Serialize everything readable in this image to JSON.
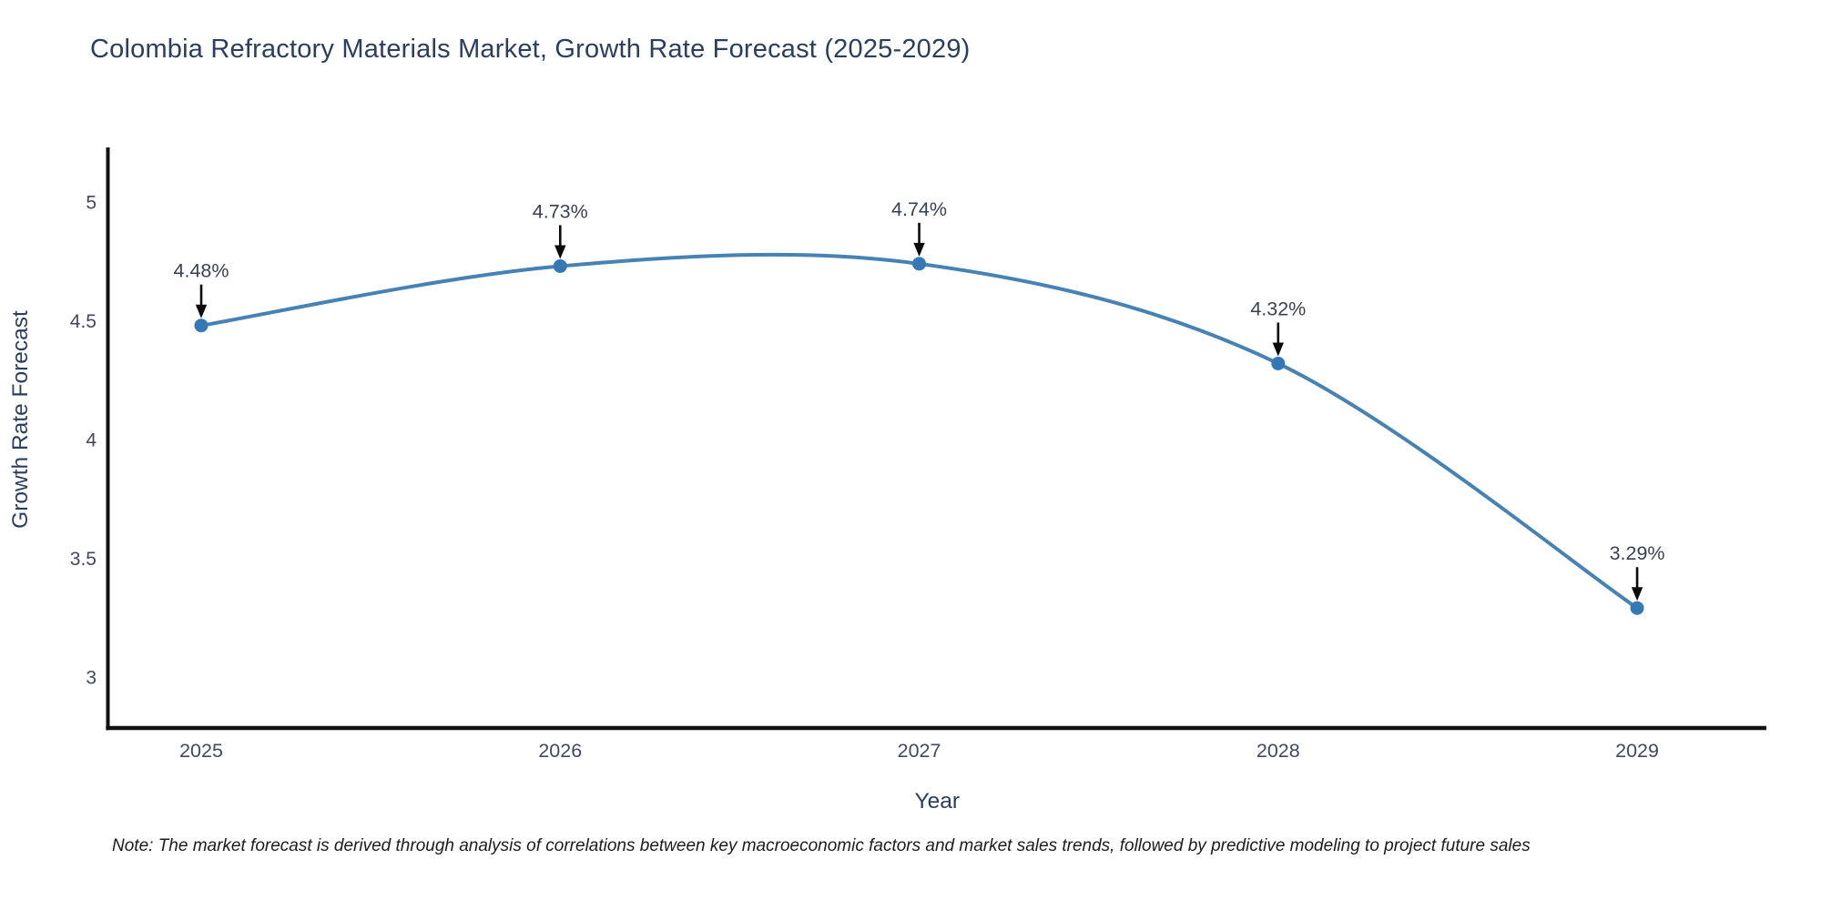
{
  "title": "Colombia Refractory Materials Market, Growth Rate Forecast (2025-2029)",
  "note": "Note: The market forecast is derived through analysis of correlations between key macroeconomic factors and market sales trends, followed by predictive modeling to project future sales",
  "chart_data": {
    "type": "line",
    "title": "Colombia Refractory Materials Market, Growth Rate Forecast (2025-2029)",
    "x": [
      2025,
      2026,
      2027,
      2028,
      2029
    ],
    "series": [
      {
        "name": "Growth Rate Forecast",
        "values": [
          4.48,
          4.73,
          4.74,
          4.32,
          3.29
        ]
      }
    ],
    "point_labels": [
      "4.48%",
      "4.73%",
      "4.74%",
      "4.32%",
      "3.29%"
    ],
    "xlabel": "Year",
    "ylabel": "Growth Rate Forecast",
    "xticks": [
      2025,
      2026,
      2027,
      2028,
      2029
    ],
    "yticks": [
      3,
      3.5,
      4,
      4.5,
      5
    ],
    "xlim": [
      2024.74,
      2029.36
    ],
    "ylim": [
      2.785,
      5.23
    ],
    "grid": false,
    "legend": "none",
    "line_shape": "spline",
    "annotations_arrow": true,
    "colors": {
      "line": "#4682b4",
      "marker": "#3578b6",
      "axis_spine": "#111111",
      "tick_label": "#42495e",
      "axis_title": "#2a3f5f",
      "chart_title": "#2a3f5f",
      "annotation_text": "#3a4150",
      "annotation_arrow": "#0a0a0a",
      "background": "#ffffff"
    }
  }
}
